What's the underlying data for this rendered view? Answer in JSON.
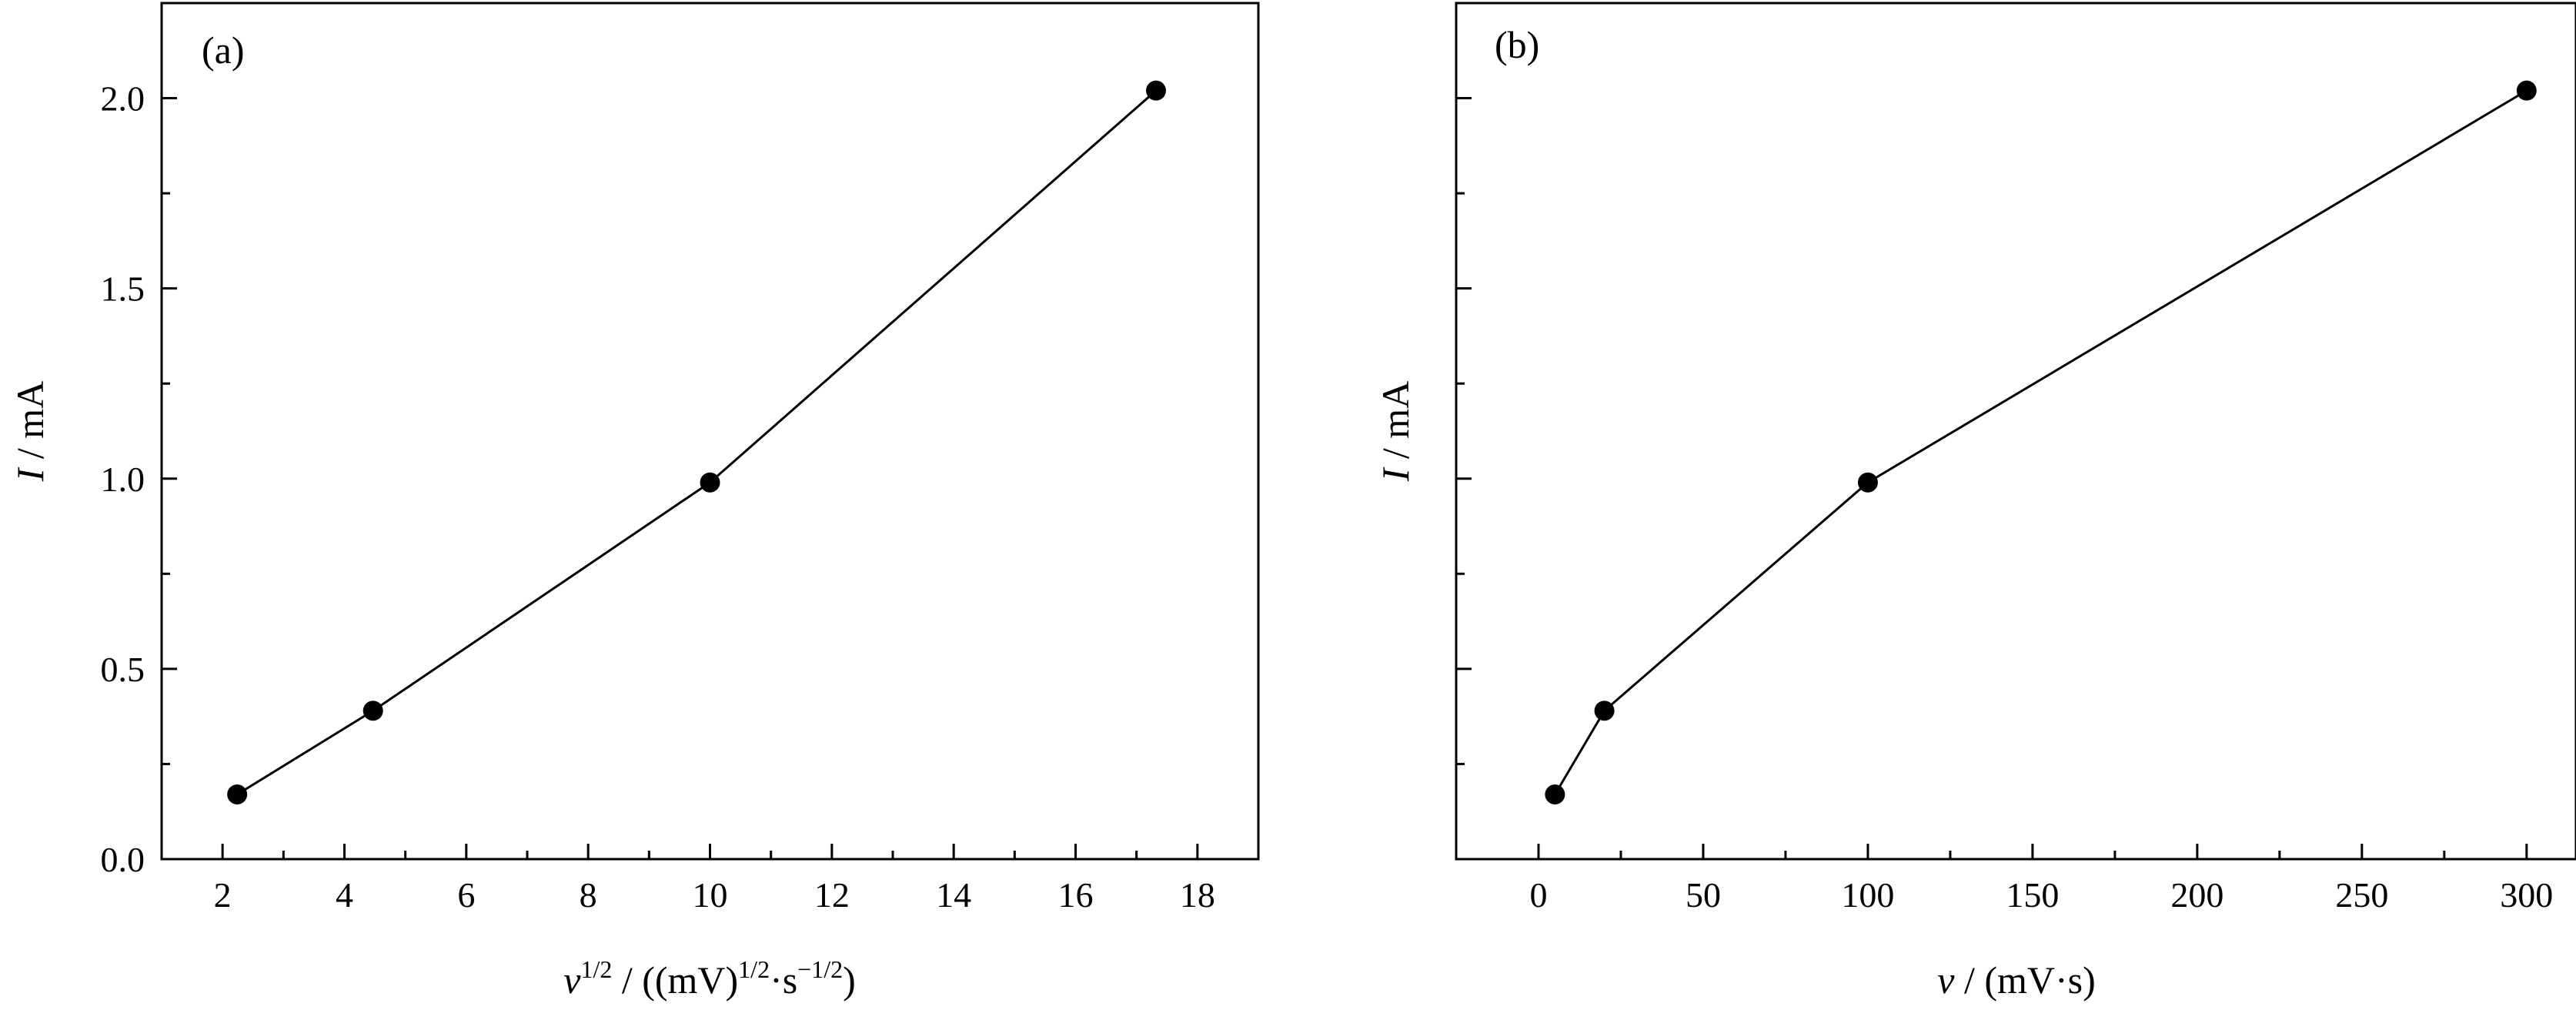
{
  "chart_data": [
    {
      "type": "line",
      "panel_label": "(a)",
      "x": [
        2.24,
        4.47,
        10.0,
        17.32
      ],
      "y": [
        0.17,
        0.39,
        0.99,
        2.02
      ],
      "xlim": [
        1,
        19
      ],
      "ylim": [
        0,
        2.25
      ],
      "xticks": [
        2,
        4,
        6,
        8,
        10,
        12,
        14,
        16,
        18
      ],
      "yticks": [
        0.0,
        0.5,
        1.0,
        1.5,
        2.0
      ],
      "ytick_labels": [
        "0.0",
        "0.5",
        "1.0",
        "1.5",
        "2.0"
      ],
      "xlabel": {
        "var": "v",
        "var_sup": "1/2",
        "mid1": " / ((mV)",
        "mid1_sup": "1/2",
        "mid2": "·s",
        "mid2_sup": "−1/2",
        "end": ")"
      },
      "ylabel": {
        "var": "I",
        "rest": " / mA"
      },
      "marker": "circle",
      "grid": false,
      "legend": "none"
    },
    {
      "type": "line",
      "panel_label": "(b)",
      "x": [
        5,
        20,
        100,
        300
      ],
      "y": [
        0.17,
        0.39,
        0.99,
        2.02
      ],
      "xlim": [
        -25,
        315
      ],
      "ylim": [
        0,
        2.25
      ],
      "xticks": [
        0,
        50,
        100,
        150,
        200,
        250,
        300
      ],
      "yticks": [
        0.0,
        0.5,
        1.0,
        1.5,
        2.0
      ],
      "ytick_labels": [],
      "xlabel": {
        "var": "v",
        "rest": " / (mV·s)"
      },
      "ylabel": {
        "var": "I",
        "rest": " / mA"
      },
      "marker": "circle",
      "grid": false,
      "legend": "none"
    }
  ]
}
